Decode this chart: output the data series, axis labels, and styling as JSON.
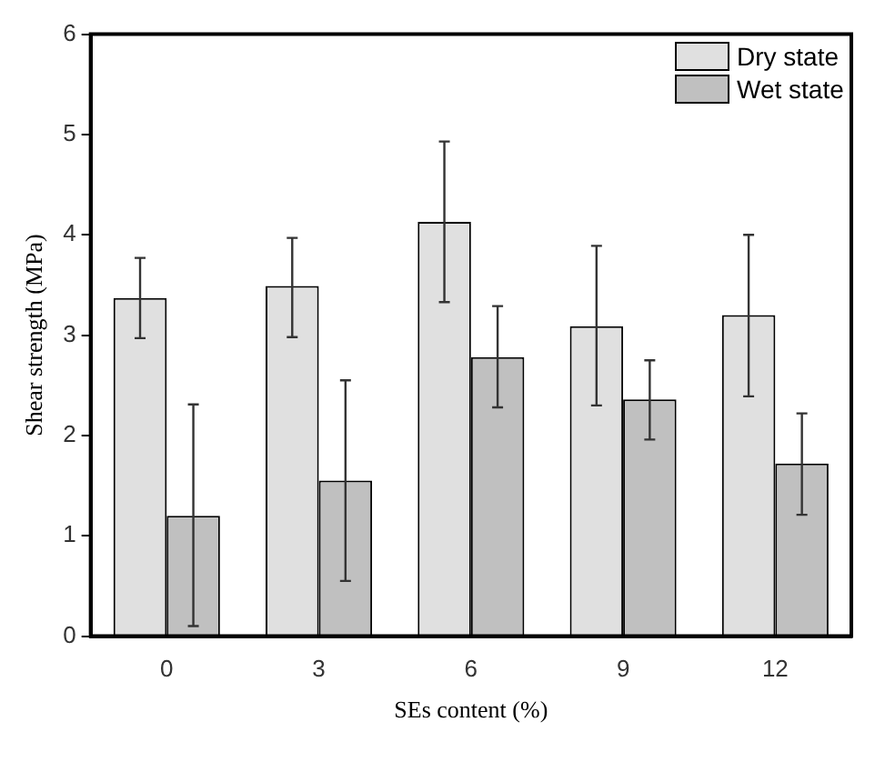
{
  "chart_data": {
    "type": "bar",
    "xlabel": "SEs content (%)",
    "ylabel": "Shear strength (MPa)",
    "categories": [
      "0",
      "3",
      "6",
      "9",
      "12"
    ],
    "series": [
      {
        "name": "Dry state",
        "color": "#e0e0e0",
        "values": [
          3.37,
          3.49,
          4.13,
          3.09,
          3.2
        ],
        "errors": [
          [
            2.97,
            3.77
          ],
          [
            2.98,
            3.97
          ],
          [
            3.33,
            4.93
          ],
          [
            2.3,
            3.89
          ],
          [
            2.39,
            4.0
          ]
        ]
      },
      {
        "name": "Wet state",
        "color": "#c0c0c0",
        "values": [
          1.2,
          1.55,
          2.78,
          2.36,
          1.72
        ],
        "errors": [
          [
            0.1,
            2.31
          ],
          [
            0.55,
            2.55
          ],
          [
            2.28,
            3.29
          ],
          [
            1.96,
            2.75
          ],
          [
            1.21,
            2.22
          ]
        ]
      }
    ],
    "ylim": [
      0,
      6
    ],
    "yticks": [
      0,
      1,
      2,
      3,
      4,
      5,
      6
    ],
    "grid": false,
    "legend": "top right"
  }
}
